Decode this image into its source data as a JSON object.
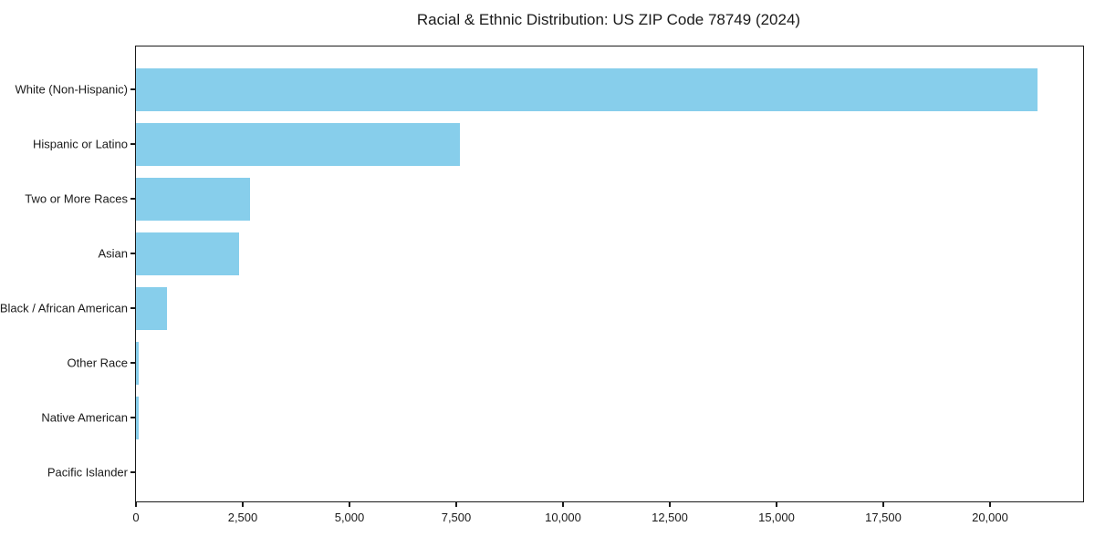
{
  "chart_data": {
    "type": "bar",
    "orientation": "horizontal",
    "title": "Racial & Ethnic Distribution: US ZIP Code 78749 (2024)",
    "categories": [
      "White (Non-Hispanic)",
      "Hispanic or Latino",
      "Two or More Races",
      "Asian",
      "Black / African American",
      "Other Race",
      "Native American",
      "Pacific Islander"
    ],
    "values": [
      21120,
      7590,
      2665,
      2410,
      720,
      65,
      60,
      0
    ],
    "xlabel": "",
    "ylabel": "",
    "xlim": [
      0,
      22180
    ],
    "x_ticks": [
      0,
      2500,
      5000,
      7500,
      10000,
      12500,
      15000,
      17500,
      20000
    ],
    "x_tick_labels": [
      "0",
      "2,500",
      "5,000",
      "7,500",
      "10,000",
      "12,500",
      "15,000",
      "17,500",
      "20,000"
    ],
    "grid": false,
    "legend": null,
    "bar_color": "#87CEEB",
    "background_color": "#ffffff",
    "text_color": "#1a1a1a",
    "sort_order": "descending"
  }
}
